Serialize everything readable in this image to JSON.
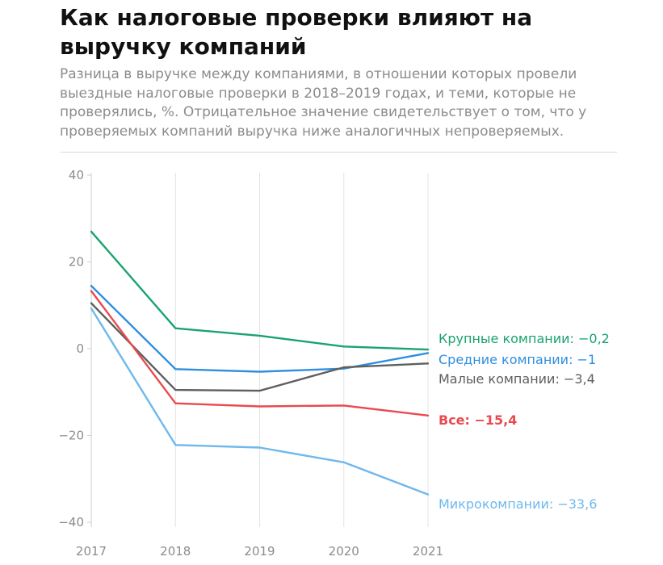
{
  "header": {
    "title": "Как налоговые проверки влияют на выручку компаний",
    "subtitle": "Разница в выручке между компаниями, в отношении которых провели выездные налоговые проверки в 2018–2019 годах, и теми, которые не проверялись, %. Отрицательное значение свидетельствует о том, что у проверяемых компаний выручка ниже аналогичных непроверяемых."
  },
  "chart_data": {
    "type": "line",
    "title": "Как налоговые проверки влияют на выручку компаний",
    "subtitle": "Разница в выручке между компаниями, в отношении которых провели выездные налоговые проверки в 2018–2019 годах, и теми, которые не проверялись, %. Отрицательное значение свидетельствует о том, что у проверяемых компаний выручка ниже аналогичных непроверяемых.",
    "x": [
      2017,
      2018,
      2019,
      2020,
      2021
    ],
    "x_tick_labels": [
      "2017",
      "2018",
      "2019",
      "2020",
      "2021"
    ],
    "y_ticks": [
      40,
      20,
      0,
      -20,
      -40
    ],
    "y_tick_labels": [
      "40",
      "20",
      "0",
      "−20",
      "−40"
    ],
    "ylim": [
      -40,
      40
    ],
    "grid": "vertical",
    "legend": "end-of-line labels",
    "series": [
      {
        "name": "Крупные компании",
        "end_label": "Крупные компании: −0,2",
        "color": "#1aa36f",
        "bold": false,
        "values": [
          27.0,
          4.7,
          3.0,
          0.5,
          -0.2
        ]
      },
      {
        "name": "Средние компании",
        "end_label": "Средние компании: −1",
        "color": "#2f8ee0",
        "bold": false,
        "values": [
          14.5,
          -4.7,
          -5.3,
          -4.6,
          -1.0
        ]
      },
      {
        "name": "Малые компании",
        "end_label": "Малые компании: −3,4",
        "color": "#5f5f5f",
        "bold": false,
        "values": [
          10.5,
          -9.5,
          -9.7,
          -4.3,
          -3.4
        ]
      },
      {
        "name": "Все",
        "end_label": "Все: −15,4",
        "color": "#e84a4f",
        "bold": true,
        "values": [
          13.3,
          -12.6,
          -13.3,
          -13.1,
          -15.4
        ]
      },
      {
        "name": "Микрокомпании",
        "end_label": "Микрокомпании: −33,6",
        "color": "#6fb8ec",
        "bold": false,
        "values": [
          9.3,
          -22.2,
          -22.8,
          -26.2,
          -33.6
        ]
      }
    ]
  }
}
